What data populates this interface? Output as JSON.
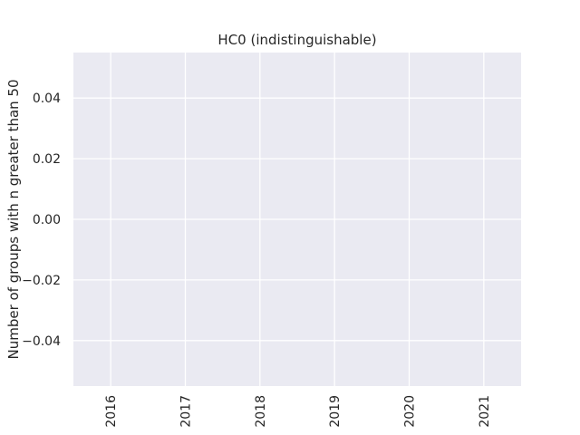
{
  "chart_data": {
    "type": "line",
    "title": "HC0 (indistinguishable)",
    "xlabel": "",
    "ylabel": "Number of groups with n greater than 50",
    "x": [],
    "series": [],
    "xticks": [
      "2016",
      "2017",
      "2018",
      "2019",
      "2020",
      "2021"
    ],
    "xlim": [
      2015.5,
      2021.5
    ],
    "ylim": [
      -0.055,
      0.055
    ],
    "yticks": [
      0.04,
      0.02,
      0.0,
      -0.02,
      -0.04
    ],
    "ytick_labels": [
      "0.04",
      "0.02",
      "0.00",
      "−0.02",
      "−0.04"
    ],
    "xtick_rotation": "vertical",
    "grid": true,
    "style": "seaborn-darkgrid",
    "colors": {
      "plot_background": "#eaeaf2",
      "grid": "#ffffff",
      "text": "#262626"
    }
  }
}
